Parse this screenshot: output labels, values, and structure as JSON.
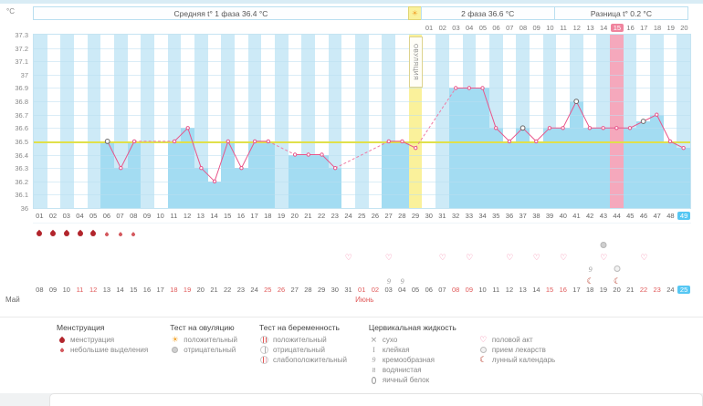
{
  "header": {
    "unit": "°C",
    "phase1": "Средняя t° 1 фаза 36.4 °C",
    "sun_icon": "☀",
    "phase2": "2 фаза 36.6 °C",
    "diff": "Разница t° 0.2 °C",
    "ovulation_label": "ОВУЛЯЦИЯ"
  },
  "dpo": {
    "labels": [
      "01",
      "02",
      "03",
      "04",
      "05",
      "06",
      "07",
      "08",
      "09",
      "10",
      "11",
      "12",
      "13",
      "14",
      "15",
      "16",
      "17",
      "18",
      "19",
      "20"
    ],
    "highlight": 15
  },
  "chart_data": {
    "type": "line",
    "ylabel": "°C",
    "ylim": [
      36,
      37.3
    ],
    "yticks": [
      "37.3",
      "37.2",
      "37.1",
      "37",
      "36.9",
      "36.8",
      "36.7",
      "36.6",
      "36.5",
      "36.4",
      "36.3",
      "36.2",
      "36.1",
      "36"
    ],
    "baseline": 36.5,
    "days": [
      "01",
      "02",
      "03",
      "04",
      "05",
      "06",
      "07",
      "08",
      "09",
      "10",
      "11",
      "12",
      "13",
      "14",
      "15",
      "16",
      "17",
      "18",
      "19",
      "20",
      "21",
      "22",
      "23",
      "24",
      "25",
      "26",
      "27",
      "28",
      "29",
      "30",
      "31",
      "32",
      "33",
      "34",
      "35",
      "36",
      "37",
      "38",
      "39",
      "40",
      "41",
      "42",
      "43",
      "44",
      "45",
      "46",
      "47",
      "48",
      "49"
    ],
    "temps": [
      null,
      null,
      null,
      null,
      null,
      36.5,
      36.3,
      36.5,
      null,
      null,
      36.5,
      36.6,
      36.3,
      36.2,
      36.5,
      36.3,
      36.5,
      36.5,
      null,
      36.4,
      36.4,
      36.4,
      36.3,
      null,
      null,
      null,
      36.5,
      36.5,
      36.45,
      null,
      null,
      36.9,
      36.9,
      36.9,
      36.6,
      36.5,
      36.6,
      36.5,
      36.6,
      36.6,
      36.8,
      36.6,
      36.6,
      36.6,
      36.6,
      36.65,
      36.7,
      36.5,
      36.45
    ],
    "special_marker_days": [
      6,
      37,
      41,
      46
    ],
    "ovulation_day": 29,
    "highlight_day": 44,
    "current_day": 49,
    "colors": {
      "line": "#e8558a",
      "line_dashed": "#ee7ba4",
      "bar": "#a3dcf2",
      "column_alt": "#cdeaf7",
      "ovulation": "#faf19b",
      "highlight": "#f5a8bc",
      "baseline": "#e0e04a",
      "current": "#56c7f3"
    }
  },
  "symbols": {
    "rows": 5,
    "items": [
      {
        "day": 1,
        "row": 1,
        "icon": "menstruation"
      },
      {
        "day": 2,
        "row": 1,
        "icon": "menstruation"
      },
      {
        "day": 3,
        "row": 1,
        "icon": "menstruation"
      },
      {
        "day": 4,
        "row": 1,
        "icon": "menstruation"
      },
      {
        "day": 5,
        "row": 1,
        "icon": "menstruation"
      },
      {
        "day": 6,
        "row": 1,
        "icon": "spotting"
      },
      {
        "day": 7,
        "row": 1,
        "icon": "spotting"
      },
      {
        "day": 8,
        "row": 1,
        "icon": "spotting"
      },
      {
        "day": 43,
        "row": 2,
        "icon": "ovu-neg"
      },
      {
        "day": 24,
        "row": 3,
        "icon": "heart"
      },
      {
        "day": 27,
        "row": 3,
        "icon": "heart"
      },
      {
        "day": 31,
        "row": 3,
        "icon": "heart"
      },
      {
        "day": 33,
        "row": 3,
        "icon": "heart"
      },
      {
        "day": 36,
        "row": 3,
        "icon": "heart"
      },
      {
        "day": 38,
        "row": 3,
        "icon": "heart"
      },
      {
        "day": 40,
        "row": 3,
        "icon": "heart"
      },
      {
        "day": 43,
        "row": 3,
        "icon": "heart"
      },
      {
        "day": 46,
        "row": 3,
        "icon": "heart"
      },
      {
        "day": 42,
        "row": 4,
        "icon": "creamy"
      },
      {
        "day": 44,
        "row": 4,
        "icon": "meds"
      },
      {
        "day": 27,
        "row": 5,
        "icon": "creamy"
      },
      {
        "day": 28,
        "row": 5,
        "icon": "creamy"
      },
      {
        "day": 42,
        "row": 5,
        "icon": "moon"
      },
      {
        "day": 44,
        "row": 5,
        "icon": "moon"
      }
    ]
  },
  "dates": {
    "labels": [
      "08",
      "09",
      "10",
      "11",
      "12",
      "13",
      "14",
      "15",
      "16",
      "17",
      "18",
      "19",
      "20",
      "21",
      "22",
      "23",
      "24",
      "25",
      "26",
      "27",
      "28",
      "29",
      "30",
      "31",
      "01",
      "02",
      "03",
      "04",
      "05",
      "06",
      "07",
      "08",
      "09",
      "10",
      "11",
      "12",
      "13",
      "14",
      "15",
      "16",
      "17",
      "18",
      "19",
      "20",
      "21",
      "22",
      "23",
      "24",
      "25"
    ],
    "red": [
      4,
      5,
      11,
      12,
      18,
      19,
      25,
      26,
      32,
      33,
      39,
      40,
      46,
      47
    ],
    "highlight": 49,
    "month1": "Май",
    "month2": "Июнь"
  },
  "legend": {
    "groups": [
      {
        "title": "Менструация",
        "items": [
          {
            "icon": "menstruation",
            "label": "менструация"
          },
          {
            "icon": "spotting",
            "label": "небольшие выделения"
          }
        ]
      },
      {
        "title": "Тест на овуляцию",
        "items": [
          {
            "icon": "ovu-pos",
            "label": "положительный"
          },
          {
            "icon": "ovu-neg",
            "label": "отрицательный"
          }
        ]
      },
      {
        "title": "Тест на беременность",
        "items": [
          {
            "icon": "preg-pos",
            "label": "положительный"
          },
          {
            "icon": "preg-neg",
            "label": "отрицательный"
          },
          {
            "icon": "preg-weak",
            "label": "слабоположительный"
          }
        ]
      },
      {
        "title": "Цервикальная жидкость",
        "items": [
          {
            "icon": "dry",
            "label": "сухо"
          },
          {
            "icon": "sticky",
            "label": "клейкая"
          },
          {
            "icon": "creamy",
            "label": "кремообразная"
          },
          {
            "icon": "watery",
            "label": "водянистая"
          },
          {
            "icon": "eggwhite",
            "label": "яичный белок"
          }
        ]
      },
      {
        "title": "",
        "items": [
          {
            "icon": "heart",
            "label": "половой акт"
          },
          {
            "icon": "meds",
            "label": "прием лекарств"
          },
          {
            "icon": "moon",
            "label": "лунный календарь"
          }
        ]
      }
    ]
  },
  "icon_glyphs": {
    "ovu-pos": "☀",
    "heart": "♡",
    "moon": "☾",
    "dry": "×",
    "watery": "≈",
    "creamy": "9",
    "sticky": "I"
  }
}
